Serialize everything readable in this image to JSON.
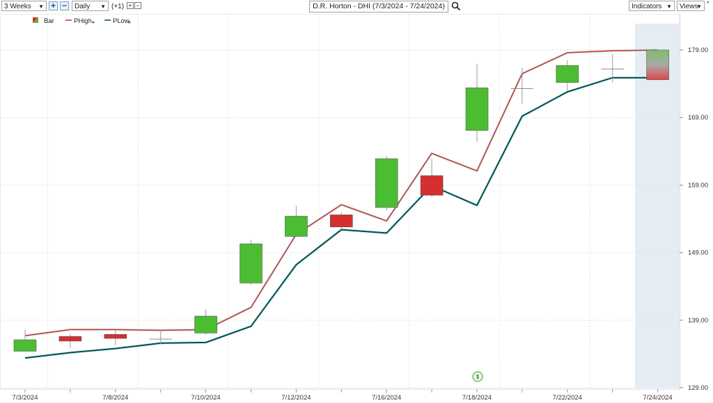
{
  "toolbar": {
    "period": "3 Weeks",
    "interval": "Daily",
    "offset": "(+1)",
    "title": "D.R. Horton - DHI (7/3/2024 - 7/24/2024)",
    "indicators": "Indicators",
    "views": "Views",
    "views_marker": "*"
  },
  "legend": [
    {
      "name": "Bar",
      "color": "#cc2a2a"
    },
    {
      "name": "PHigh",
      "color": "#cc2a2a"
    },
    {
      "name": "PLow",
      "color": "#004d4d"
    }
  ],
  "dividend_marker": "$",
  "chart_data": {
    "type": "candlestick",
    "ylim": [
      129,
      183
    ],
    "yticks": [
      "129.00",
      "139.00",
      "149.00",
      "159.00",
      "169.00",
      "179.00"
    ],
    "x_labels": [
      "7/3/2024",
      "7/8/2024",
      "7/10/2024",
      "7/12/2024",
      "7/16/2024",
      "7/18/2024",
      "7/22/2024",
      "7/24/2024"
    ],
    "up_color": "#4cbd32",
    "down_color": "#d62f2f",
    "bars": [
      {
        "open": 134.4,
        "close": 136.1,
        "high": 137.6,
        "low": 134.4
      },
      {
        "open": 136.6,
        "close": 135.9,
        "high": 136.9,
        "low": 134.9
      },
      {
        "open": 136.9,
        "close": 136.3,
        "high": 137.6,
        "low": 135.3
      },
      {
        "open": 136.2,
        "close": 136.2,
        "high": 137.6,
        "low": 135.4
      },
      {
        "open": 137.1,
        "close": 139.6,
        "high": 140.6,
        "low": 136.9
      },
      {
        "open": 144.5,
        "close": 150.3,
        "high": 150.9,
        "low": 144.3
      },
      {
        "open": 151.4,
        "close": 154.4,
        "high": 155.9,
        "low": 151.4
      },
      {
        "open": 154.6,
        "close": 152.8,
        "high": 155.0,
        "low": 152.6
      },
      {
        "open": 155.7,
        "close": 162.9,
        "high": 163.3,
        "low": 155.2
      },
      {
        "open": 160.4,
        "close": 157.5,
        "high": 162.9,
        "low": 157.2
      },
      {
        "open": 167.1,
        "close": 173.4,
        "high": 177.0,
        "low": 165.4
      },
      {
        "open": 173.3,
        "close": 173.3,
        "high": 176.4,
        "low": 171.0
      },
      {
        "open": 174.2,
        "close": 176.7,
        "high": 177.5,
        "low": 173.0
      },
      {
        "open": 176.2,
        "close": 176.2,
        "high": 178.4,
        "low": 174.2
      },
      {
        "open": 174.6,
        "close": 179.0,
        "high": 179.0,
        "low": 174.6
      }
    ],
    "series": [
      {
        "name": "PHigh",
        "color": "#cc2a2a",
        "values": [
          136.7,
          137.6,
          137.6,
          137.5,
          137.6,
          140.9,
          151.7,
          156.1,
          153.7,
          163.7,
          161.1,
          175.5,
          178.6,
          178.9,
          179.0
        ]
      },
      {
        "name": "PLow",
        "color": "#004d4d",
        "values": [
          133.4,
          134.2,
          134.8,
          135.6,
          135.7,
          138.1,
          147.2,
          152.4,
          151.9,
          158.9,
          156.0,
          169.2,
          172.8,
          174.9,
          174.9
        ]
      }
    ]
  }
}
